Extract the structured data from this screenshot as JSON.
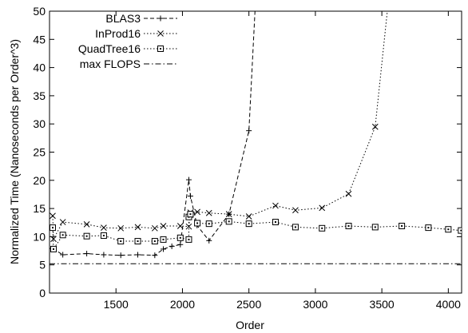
{
  "chart_data": {
    "type": "line",
    "title": "",
    "xlabel": "Order",
    "ylabel": "Normalized Time (Nanoseconds per Order^3)",
    "xlim": [
      1000,
      4100
    ],
    "ylim": [
      0,
      50
    ],
    "xticks": [
      1500,
      2000,
      2500,
      3000,
      3500,
      4000
    ],
    "yticks": [
      0,
      5,
      10,
      15,
      20,
      25,
      30,
      35,
      40,
      45,
      50
    ],
    "grid": false,
    "legend_position": "top-left",
    "series": [
      {
        "name": "BLAS3",
        "style": "dashed",
        "marker": "plus",
        "points": [
          [
            1024,
            7.9
          ],
          [
            1100,
            6.8
          ],
          [
            1280,
            7.0
          ],
          [
            1408,
            6.8
          ],
          [
            1536,
            6.7
          ],
          [
            1664,
            6.8
          ],
          [
            1792,
            6.7
          ],
          [
            1856,
            7.8
          ],
          [
            1920,
            8.3
          ],
          [
            1984,
            8.6
          ],
          [
            2048,
            20.1
          ],
          [
            2060,
            17.2
          ],
          [
            2110,
            12.0
          ],
          [
            2200,
            9.3
          ],
          [
            2350,
            14.0
          ],
          [
            2500,
            28.8
          ],
          [
            2550,
            52.0
          ]
        ]
      },
      {
        "name": "InProd16",
        "style": "dotted",
        "marker": "cross",
        "points": [
          [
            1024,
            13.7
          ],
          [
            1030,
            9.6
          ],
          [
            1100,
            12.6
          ],
          [
            1280,
            12.2
          ],
          [
            1408,
            11.6
          ],
          [
            1536,
            11.5
          ],
          [
            1664,
            11.7
          ],
          [
            1792,
            11.5
          ],
          [
            1856,
            11.9
          ],
          [
            1984,
            11.9
          ],
          [
            2048,
            11.8
          ],
          [
            2060,
            14.3
          ],
          [
            2112,
            14.4
          ],
          [
            2200,
            14.2
          ],
          [
            2350,
            14.0
          ],
          [
            2500,
            13.6
          ],
          [
            2700,
            15.5
          ],
          [
            2850,
            14.7
          ],
          [
            3050,
            15.1
          ],
          [
            3250,
            17.6
          ],
          [
            3450,
            29.5
          ],
          [
            3550,
            52.0
          ]
        ]
      },
      {
        "name": "QuadTree16",
        "style": "dotted",
        "marker": "square",
        "points": [
          [
            1024,
            11.6
          ],
          [
            1030,
            7.8
          ],
          [
            1100,
            10.3
          ],
          [
            1280,
            10.1
          ],
          [
            1408,
            10.2
          ],
          [
            1536,
            9.2
          ],
          [
            1664,
            9.2
          ],
          [
            1792,
            9.2
          ],
          [
            1856,
            9.5
          ],
          [
            1984,
            9.8
          ],
          [
            2048,
            9.5
          ],
          [
            2048,
            13.5
          ],
          [
            2060,
            14.0
          ],
          [
            2112,
            12.4
          ],
          [
            2200,
            12.3
          ],
          [
            2350,
            12.7
          ],
          [
            2500,
            12.3
          ],
          [
            2700,
            12.6
          ],
          [
            2850,
            11.7
          ],
          [
            3050,
            11.5
          ],
          [
            3250,
            11.9
          ],
          [
            3450,
            11.7
          ],
          [
            3650,
            11.9
          ],
          [
            3850,
            11.6
          ],
          [
            4000,
            11.3
          ],
          [
            4096,
            11.1
          ]
        ]
      },
      {
        "name": "max FLOPS",
        "style": "dashdot",
        "marker": "none",
        "points": [
          [
            1000,
            5.2
          ],
          [
            4100,
            5.2
          ]
        ]
      }
    ]
  }
}
